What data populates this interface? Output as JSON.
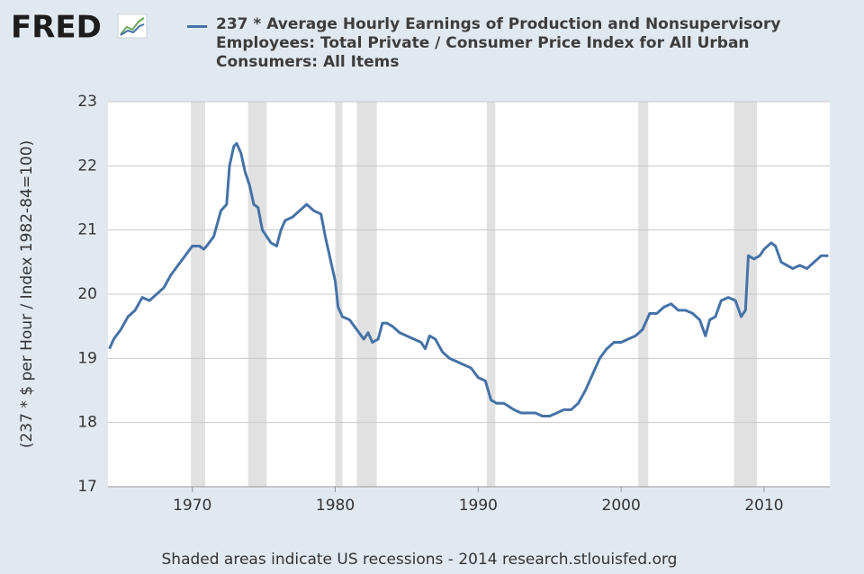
{
  "logo": "FRED",
  "footer": "Shaded areas indicate US recessions - 2014 research.stlouisfed.org",
  "chart_data": {
    "type": "line",
    "y_label": "(237 * $ per Hour / Index 1982-84=100)",
    "x": [
      1964.2,
      1964.5,
      1965.0,
      1965.5,
      1966.0,
      1966.5,
      1967.0,
      1967.5,
      1968.0,
      1968.5,
      1969.0,
      1969.5,
      1970.0,
      1970.5,
      1970.8,
      1971.0,
      1971.5,
      1972.0,
      1972.4,
      1972.6,
      1972.9,
      1973.1,
      1973.4,
      1973.7,
      1974.0,
      1974.3,
      1974.6,
      1974.9,
      1975.2,
      1975.5,
      1975.9,
      1976.2,
      1976.5,
      1977.0,
      1977.5,
      1978.0,
      1978.5,
      1979.0,
      1979.3,
      1979.6,
      1980.0,
      1980.2,
      1980.5,
      1981.0,
      1981.5,
      1982.0,
      1982.3,
      1982.6,
      1983.0,
      1983.3,
      1983.6,
      1984.0,
      1984.5,
      1985.0,
      1985.5,
      1986.0,
      1986.3,
      1986.6,
      1987.0,
      1987.5,
      1988.0,
      1988.5,
      1989.0,
      1989.5,
      1990.0,
      1990.5,
      1990.9,
      1991.3,
      1991.8,
      1992.5,
      1993.0,
      1993.5,
      1994.0,
      1994.5,
      1995.0,
      1995.5,
      1996.0,
      1996.5,
      1997.0,
      1997.5,
      1998.0,
      1998.5,
      1999.0,
      1999.5,
      2000.0,
      2000.5,
      2001.0,
      2001.5,
      2002.0,
      2002.5,
      2003.0,
      2003.5,
      2004.0,
      2004.5,
      2005.0,
      2005.5,
      2005.9,
      2006.2,
      2006.6,
      2007.0,
      2007.5,
      2008.0,
      2008.4,
      2008.7,
      2008.9,
      2009.3,
      2009.7,
      2010.0,
      2010.5,
      2010.8,
      2011.2,
      2011.6,
      2012.0,
      2012.5,
      2013.0,
      2013.5,
      2014.0,
      2014.5
    ],
    "series": [
      {
        "name": "237 * Average Hourly Earnings of Production and Nonsupervisory Employees: Total Private / Consumer Price Index for All Urban Consumers: All Items",
        "color": "#4572a7",
        "values": [
          19.15,
          19.3,
          19.45,
          19.65,
          19.75,
          19.95,
          19.9,
          20.0,
          20.1,
          20.3,
          20.45,
          20.6,
          20.75,
          20.75,
          20.7,
          20.75,
          20.9,
          21.3,
          21.4,
          22.0,
          22.3,
          22.35,
          22.2,
          21.9,
          21.7,
          21.4,
          21.35,
          21.0,
          20.9,
          20.8,
          20.75,
          21.0,
          21.15,
          21.2,
          21.3,
          21.4,
          21.3,
          21.25,
          20.9,
          20.6,
          20.2,
          19.8,
          19.65,
          19.6,
          19.45,
          19.3,
          19.4,
          19.25,
          19.3,
          19.55,
          19.55,
          19.5,
          19.4,
          19.35,
          19.3,
          19.25,
          19.15,
          19.35,
          19.3,
          19.1,
          19.0,
          18.95,
          18.9,
          18.85,
          18.7,
          18.65,
          18.35,
          18.3,
          18.3,
          18.2,
          18.15,
          18.15,
          18.15,
          18.1,
          18.1,
          18.15,
          18.2,
          18.2,
          18.3,
          18.5,
          18.75,
          19.0,
          19.15,
          19.25,
          19.25,
          19.3,
          19.35,
          19.45,
          19.7,
          19.7,
          19.8,
          19.85,
          19.75,
          19.75,
          19.7,
          19.6,
          19.35,
          19.6,
          19.65,
          19.9,
          19.95,
          19.9,
          19.65,
          19.75,
          20.6,
          20.55,
          20.6,
          20.7,
          20.8,
          20.75,
          20.5,
          20.45,
          20.4,
          20.45,
          20.4,
          20.5,
          20.6,
          20.6
        ]
      }
    ],
    "recessions": [
      [
        1969.9,
        1970.9
      ],
      [
        1973.9,
        1975.2
      ],
      [
        1980.0,
        1980.5
      ],
      [
        1981.5,
        1982.9
      ],
      [
        1990.6,
        1991.2
      ],
      [
        2001.2,
        2001.9
      ],
      [
        2007.9,
        2009.5
      ]
    ],
    "recession_color": "#e1e1e1",
    "xlim": [
      1964.1,
      2014.6
    ],
    "xticks": [
      1970,
      1980,
      1990,
      2000,
      2010
    ],
    "ylim": [
      17,
      23
    ],
    "yticks": [
      17,
      18,
      19,
      20,
      21,
      22,
      23
    ],
    "grid": true
  }
}
